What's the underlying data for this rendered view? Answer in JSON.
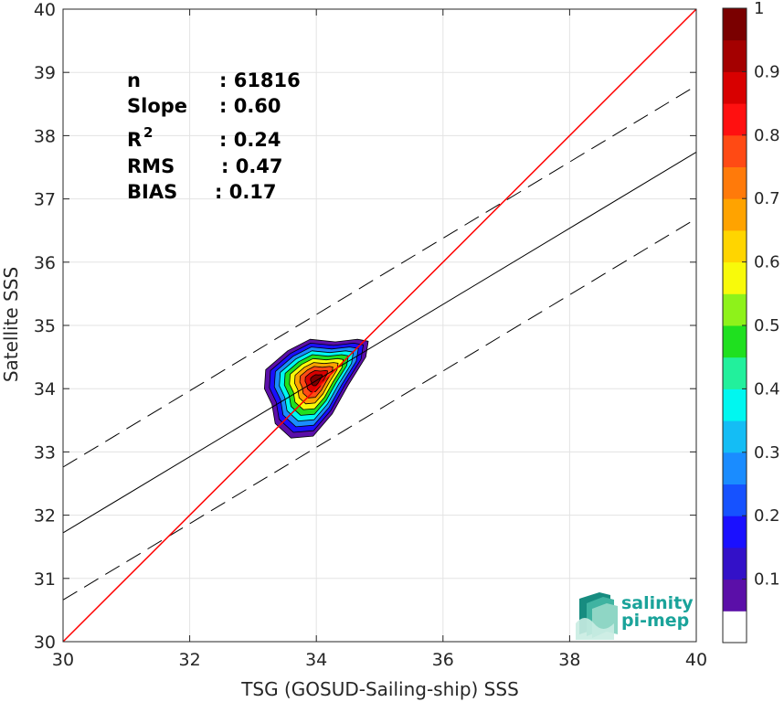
{
  "chart_data": {
    "type": "heatmap",
    "xlabel": "TSG (GOSUD-Sailing-ship) SSS",
    "ylabel": "Satellite SSS",
    "xlim": [
      30,
      40
    ],
    "ylim": [
      30,
      40
    ],
    "xticks": [
      "30",
      "32",
      "34",
      "36",
      "38",
      "40"
    ],
    "yticks": [
      "30",
      "31",
      "32",
      "33",
      "34",
      "35",
      "36",
      "37",
      "38",
      "39",
      "40"
    ],
    "grid": true,
    "stats": {
      "n": {
        "label": "n",
        "value": ": 61816"
      },
      "slope": {
        "label": "Slope",
        "value": ": 0.60"
      },
      "r2": {
        "label": "R",
        "sup": "2",
        "value": ": 0.24"
      },
      "rms": {
        "label": "RMS",
        "value": ": 0.47"
      },
      "bias": {
        "label": "BIAS",
        "value": ": 0.17"
      }
    },
    "identity_line": {
      "color": "#ff0000",
      "x": [
        30,
        40
      ],
      "y": [
        30,
        40
      ]
    },
    "fit_line": {
      "color": "#000000",
      "x": [
        30,
        40
      ],
      "y": [
        31.72,
        37.74
      ]
    },
    "fit_band_upper": {
      "color": "#000000",
      "x": [
        30,
        40
      ],
      "y": [
        32.76,
        38.79
      ]
    },
    "fit_band_lower": {
      "color": "#000000",
      "x": [
        30,
        40
      ],
      "y": [
        30.66,
        36.69
      ]
    },
    "density_peak": {
      "x": 34.0,
      "y": 34.15,
      "value": 1.0
    },
    "density_levels": [
      0.05,
      0.15,
      0.25,
      0.35,
      0.45,
      0.55,
      0.65,
      0.75,
      0.85,
      0.95
    ],
    "colorbar": {
      "ticks": [
        "0.1",
        "0.2",
        "0.3",
        "0.4",
        "0.5",
        "0.6",
        "0.7",
        "0.8",
        "0.9",
        "1"
      ],
      "tick_values": [
        0.1,
        0.2,
        0.3,
        0.4,
        0.5,
        0.6,
        0.7,
        0.8,
        0.9,
        1.0
      ],
      "colors": [
        "#ffffff",
        "#5b0fa8",
        "#3311c8",
        "#1a10ff",
        "#1652ff",
        "#1a8cff",
        "#14bdf5",
        "#00f7f0",
        "#22f09c",
        "#1fe01f",
        "#8ef21a",
        "#f8fa0a",
        "#ffd500",
        "#ffa300",
        "#ff7a0a",
        "#ff4a14",
        "#ff1010",
        "#d80000",
        "#a40000",
        "#7a0000"
      ]
    },
    "logo": {
      "line1": "salinity",
      "line2": "pi-mep"
    }
  }
}
